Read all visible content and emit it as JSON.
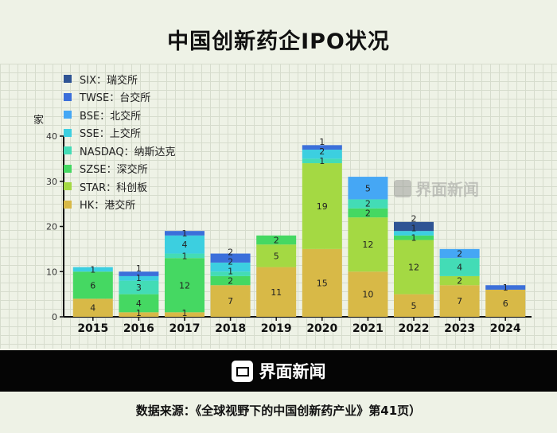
{
  "title": "中国创新药企IPO状况",
  "brand": "界面新闻",
  "watermark": "界面新闻",
  "source": "数据来源：《全球视野下的中国创新药产业》第41页）",
  "chart_data": {
    "type": "bar",
    "stacked": true,
    "ylabel": "家",
    "ylim": [
      0,
      40
    ],
    "yticks": [
      0,
      10,
      20,
      30,
      40
    ],
    "grid": true,
    "legend_position": "top-left",
    "categories": [
      "2015",
      "2016",
      "2017",
      "2018",
      "2019",
      "2020",
      "2021",
      "2022",
      "2023",
      "2024"
    ],
    "series": [
      {
        "name": "HK：港交所",
        "color": "#d8b947",
        "values": [
          4,
          1,
          1,
          7,
          11,
          15,
          10,
          5,
          7,
          6
        ]
      },
      {
        "name": "STAR：科创板",
        "color": "#a4d943",
        "values": [
          0,
          0,
          0,
          0,
          5,
          19,
          12,
          12,
          2,
          0
        ]
      },
      {
        "name": "SZSE：深交所",
        "color": "#45d862",
        "values": [
          6,
          4,
          12,
          2,
          2,
          0,
          2,
          1,
          0,
          0
        ]
      },
      {
        "name": "NASDAQ：纳斯达克",
        "color": "#43dcb6",
        "values": [
          0,
          3,
          1,
          1,
          0,
          1,
          2,
          0,
          4,
          0
        ]
      },
      {
        "name": "SSE：上交所",
        "color": "#3ccfe0",
        "values": [
          1,
          1,
          4,
          2,
          0,
          2,
          0,
          1,
          0,
          0
        ]
      },
      {
        "name": "BSE：北交所",
        "color": "#45a7f5",
        "values": [
          0,
          0,
          0,
          0,
          0,
          0,
          5,
          0,
          2,
          0
        ]
      },
      {
        "name": "TWSE：台交所",
        "color": "#3b6fda",
        "values": [
          0,
          1,
          1,
          2,
          0,
          1,
          0,
          0,
          0,
          1
        ]
      },
      {
        "name": "SIX：瑞交所",
        "color": "#2f5494",
        "values": [
          0,
          0,
          0,
          0,
          0,
          0,
          0,
          2,
          0,
          0
        ]
      }
    ]
  }
}
